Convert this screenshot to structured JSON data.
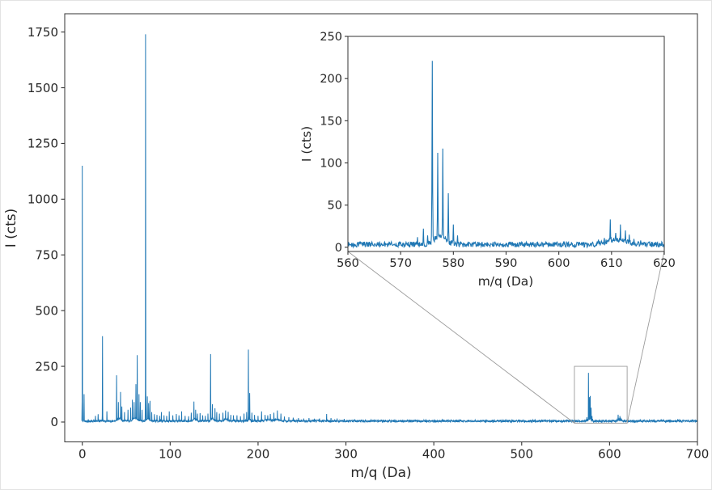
{
  "figure": {
    "background": "#ffffff",
    "series_color": "#1f77b4",
    "axis_color": "#333333",
    "tick_label_color": "#262626",
    "zoom_indicator_color": "#9b9b9b"
  },
  "chart_data": {
    "type": "line",
    "title": "",
    "description": "Mass spectrum, intensity (counts) vs mass-to-charge ratio, with zoom inset of the 560-620 Da region",
    "main": {
      "xlabel": "m/q (Da)",
      "ylabel": "I (cts)",
      "xlim": [
        -20,
        700
      ],
      "ylim": [
        -89,
        1832
      ],
      "xticks": [
        0,
        100,
        200,
        300,
        400,
        500,
        600,
        700
      ],
      "yticks": [
        0,
        250,
        500,
        750,
        1000,
        1250,
        1500,
        1750
      ],
      "grid": false,
      "noise_max": 9,
      "sample_step_da": 0.25,
      "data_range_da": [
        -0.5,
        700
      ]
    },
    "inset": {
      "xlabel": "m/q (Da)",
      "ylabel": "I (cts)",
      "xlim": [
        560,
        620
      ],
      "ylim": [
        -5,
        250
      ],
      "xticks": [
        560,
        570,
        580,
        590,
        600,
        610,
        620
      ],
      "yticks": [
        0,
        50,
        100,
        150,
        200,
        250
      ],
      "grid": false,
      "noise_max": 6.5,
      "sample_step_da": 0.08,
      "zoom_region_da": [
        560,
        620
      ],
      "zoom_region_cts": [
        -5,
        250
      ]
    },
    "peaks_mq_cts": [
      [
        0,
        1150
      ],
      [
        2,
        125
      ],
      [
        15,
        28
      ],
      [
        18,
        35
      ],
      [
        23,
        385
      ],
      [
        28,
        48
      ],
      [
        39,
        210
      ],
      [
        41,
        90
      ],
      [
        43.5,
        135
      ],
      [
        45,
        70
      ],
      [
        48,
        45
      ],
      [
        52,
        55
      ],
      [
        55,
        65
      ],
      [
        57,
        100
      ],
      [
        59,
        90
      ],
      [
        61,
        170
      ],
      [
        62.5,
        300
      ],
      [
        64.5,
        125
      ],
      [
        66,
        90
      ],
      [
        68,
        55
      ],
      [
        72,
        1740
      ],
      [
        74,
        115
      ],
      [
        75.5,
        85
      ],
      [
        77,
        95
      ],
      [
        79,
        45
      ],
      [
        82,
        35
      ],
      [
        85,
        32
      ],
      [
        88,
        28
      ],
      [
        90,
        45
      ],
      [
        93,
        30
      ],
      [
        96,
        28
      ],
      [
        99,
        48
      ],
      [
        103,
        30
      ],
      [
        107,
        36
      ],
      [
        110,
        30
      ],
      [
        113,
        48
      ],
      [
        117,
        28
      ],
      [
        121,
        26
      ],
      [
        124,
        42
      ],
      [
        127,
        92
      ],
      [
        129,
        55
      ],
      [
        131,
        38
      ],
      [
        134,
        40
      ],
      [
        137,
        30
      ],
      [
        140,
        28
      ],
      [
        143,
        38
      ],
      [
        146,
        305
      ],
      [
        148,
        80
      ],
      [
        151,
        62
      ],
      [
        153,
        45
      ],
      [
        156,
        38
      ],
      [
        160,
        42
      ],
      [
        163,
        52
      ],
      [
        166,
        46
      ],
      [
        169,
        32
      ],
      [
        172,
        30
      ],
      [
        176,
        30
      ],
      [
        180,
        26
      ],
      [
        184,
        38
      ],
      [
        187,
        45
      ],
      [
        189,
        325
      ],
      [
        190.5,
        130
      ],
      [
        193,
        42
      ],
      [
        196,
        32
      ],
      [
        200,
        28
      ],
      [
        204,
        48
      ],
      [
        208,
        32
      ],
      [
        211,
        30
      ],
      [
        214,
        36
      ],
      [
        218,
        42
      ],
      [
        222,
        52
      ],
      [
        226,
        38
      ],
      [
        230,
        25
      ],
      [
        235,
        22
      ],
      [
        240,
        20
      ],
      [
        246,
        18
      ],
      [
        252,
        16
      ],
      [
        258,
        18
      ],
      [
        264,
        15
      ],
      [
        270,
        16
      ],
      [
        278,
        36
      ],
      [
        283,
        18
      ],
      [
        290,
        16
      ],
      [
        298,
        14
      ],
      [
        310,
        12
      ],
      [
        320,
        10
      ],
      [
        573.2,
        12
      ],
      [
        574.3,
        22
      ],
      [
        575.1,
        14
      ],
      [
        576,
        221
      ],
      [
        577,
        112
      ],
      [
        578,
        117
      ],
      [
        579,
        64
      ],
      [
        580,
        27
      ],
      [
        580.8,
        14
      ],
      [
        607.5,
        9
      ],
      [
        608.6,
        11
      ],
      [
        609.8,
        33
      ],
      [
        610.8,
        17
      ],
      [
        611.7,
        27
      ],
      [
        612.6,
        20
      ],
      [
        613.4,
        15
      ],
      [
        614.2,
        10
      ],
      [
        615.5,
        8
      ]
    ],
    "broad_humps_mq_cts_sigma": [
      [
        42,
        12,
        2.5
      ],
      [
        60,
        14,
        3.5
      ],
      [
        75,
        10,
        2
      ],
      [
        128,
        8,
        2.5
      ],
      [
        148,
        10,
        2.5
      ],
      [
        164,
        8,
        3
      ],
      [
        190,
        8,
        2
      ],
      [
        211,
        6,
        5
      ],
      [
        222,
        8,
        3
      ],
      [
        577.5,
        10,
        1.6
      ],
      [
        611,
        6,
        2.5
      ]
    ]
  }
}
